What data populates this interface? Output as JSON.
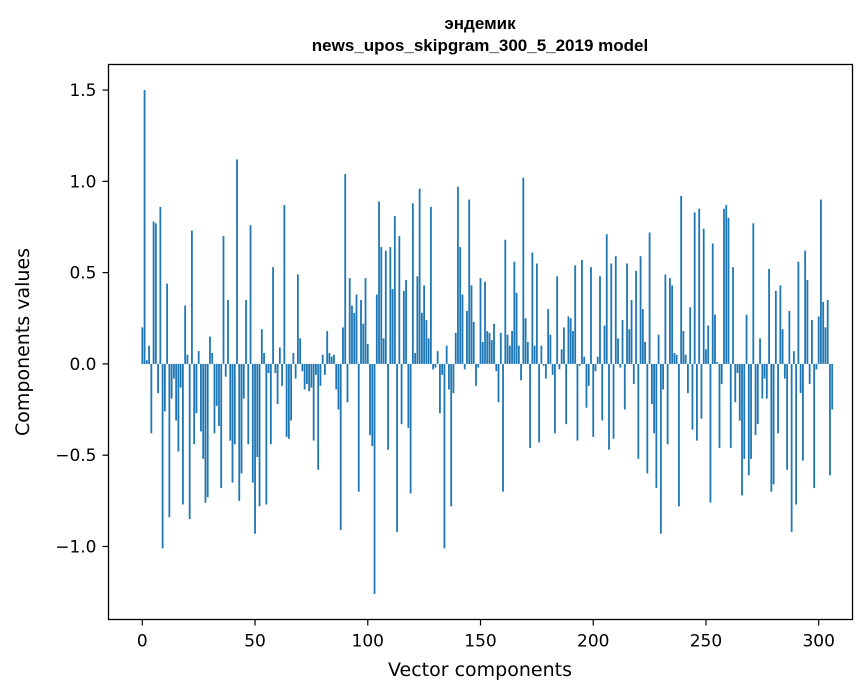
{
  "chart_data": {
    "type": "bar",
    "title_line1": "эндемик",
    "title_line2": "news_upos_skipgram_300_5_2019 model",
    "xlabel": "Vector components",
    "ylabel": "Components values",
    "xlim": [
      -15,
      315
    ],
    "ylim": [
      -1.4,
      1.64
    ],
    "xticks": [
      0,
      50,
      100,
      150,
      200,
      250,
      300
    ],
    "xtick_labels": [
      "0",
      "50",
      "100",
      "150",
      "200",
      "250",
      "300"
    ],
    "yticks": [
      1.5,
      1.0,
      0.5,
      0.0,
      -0.5,
      -1.0
    ],
    "ytick_labels": [
      "1.5",
      "1.0",
      "0.5",
      "0.0",
      "−0.5",
      "−1.0"
    ],
    "bar_color": "#1f77b4",
    "values": [
      0.2,
      1.5,
      0.02,
      0.1,
      -0.38,
      0.78,
      0.77,
      -0.16,
      0.86,
      -1.01,
      -0.26,
      0.44,
      -0.84,
      -0.19,
      -0.08,
      -0.31,
      -0.48,
      -0.13,
      -0.77,
      0.32,
      0.05,
      -0.85,
      0.73,
      -0.44,
      -0.27,
      0.07,
      -0.37,
      -0.52,
      -0.76,
      -0.73,
      0.15,
      0.06,
      -0.38,
      -0.23,
      -0.34,
      -0.68,
      0.7,
      -0.07,
      0.35,
      -0.42,
      -0.65,
      -0.44,
      1.12,
      -0.75,
      -0.6,
      -0.19,
      0.35,
      -0.44,
      0.76,
      -0.65,
      -0.93,
      -0.51,
      -0.78,
      0.19,
      0.06,
      -0.77,
      -0.05,
      -0.44,
      0.53,
      -0.05,
      -0.22,
      0.09,
      -0.12,
      0.87,
      -0.4,
      -0.41,
      -0.31,
      0.06,
      -0.08,
      0.49,
      0.14,
      -0.04,
      -0.14,
      -0.11,
      -0.15,
      -0.13,
      -0.42,
      -0.06,
      -0.58,
      -0.12,
      0.05,
      -0.06,
      0.18,
      0.06,
      0.04,
      0.05,
      -0.14,
      -0.25,
      -0.91,
      0.2,
      1.04,
      -0.21,
      0.47,
      0.32,
      0.28,
      0.38,
      -0.7,
      0.35,
      0.22,
      0.47,
      0.11,
      -0.39,
      -0.45,
      -1.26,
      0.38,
      0.89,
      0.64,
      0.14,
      0.62,
      -0.47,
      0.64,
      0.41,
      0.81,
      -0.92,
      0.7,
      -0.33,
      0.4,
      0.46,
      -0.35,
      -0.71,
      0.88,
      0.06,
      0.48,
      0.96,
      0.28,
      0.43,
      0.24,
      0.14,
      0.86,
      -0.03,
      -0.02,
      0.07,
      -0.27,
      -0.06,
      -1.01,
      0.1,
      -0.14,
      -0.78,
      -0.16,
      0.17,
      0.97,
      0.64,
      0.38,
      -0.03,
      0.29,
      0.9,
      0.43,
      0.23,
      -0.12,
      -0.02,
      0.47,
      0.12,
      0.45,
      0.18,
      0.17,
      0.13,
      0.22,
      -0.04,
      -0.21,
      0.17,
      -0.7,
      0.68,
      0.16,
      0.1,
      0.18,
      0.56,
      0.39,
      0.1,
      -0.09,
      1.02,
      0.25,
      0.12,
      -0.46,
      0.61,
      0.1,
      0.55,
      -0.43,
      0.1,
      -0.01,
      -0.08,
      0.3,
      0.16,
      -0.06,
      -0.38,
      0.48,
      -0.03,
      0.08,
      0.2,
      -0.33,
      0.26,
      0.25,
      0.18,
      0.54,
      -0.42,
      -0.01,
      0.57,
      0.04,
      -0.24,
      -0.12,
      0.53,
      -0.4,
      -0.04,
      0.04,
      0.48,
      -0.31,
      0.21,
      0.71,
      -0.47,
      0.55,
      -0.41,
      0.59,
      0.14,
      -0.02,
      0.24,
      -0.25,
      0.55,
      0.19,
      0.35,
      -0.11,
      0.51,
      -0.52,
      0.59,
      0.3,
      0.12,
      -0.6,
      0.72,
      -0.22,
      -0.38,
      -0.68,
      0.16,
      -0.93,
      -0.14,
      0.49,
      -0.44,
      0.47,
      0.43,
      0.06,
      0.05,
      -0.78,
      0.92,
      0.18,
      0.05,
      -0.16,
      0.31,
      -0.36,
      0.83,
      -0.42,
      0.85,
      -0.3,
      0.74,
      0.08,
      0.21,
      -0.76,
      0.66,
      0.27,
      0.01,
      -0.46,
      -0.11,
      0.85,
      0.87,
      0.8,
      -0.46,
      0.53,
      -0.21,
      -0.05,
      -0.31,
      -0.72,
      -0.52,
      0.27,
      -0.61,
      -0.52,
      0.77,
      -0.39,
      -0.33,
      0.14,
      -0.19,
      -0.08,
      -0.19,
      0.52,
      -0.7,
      -0.66,
      0.4,
      -0.38,
      0.43,
      0.19,
      -0.08,
      -0.58,
      0.29,
      -0.92,
      0.07,
      -0.77,
      0.56,
      -0.16,
      -0.53,
      0.62,
      0.46,
      -0.11,
      0.24,
      -0.68,
      -0.03,
      0.26,
      0.9,
      0.34,
      0.2,
      0.35,
      -0.61,
      -0.25
    ]
  }
}
